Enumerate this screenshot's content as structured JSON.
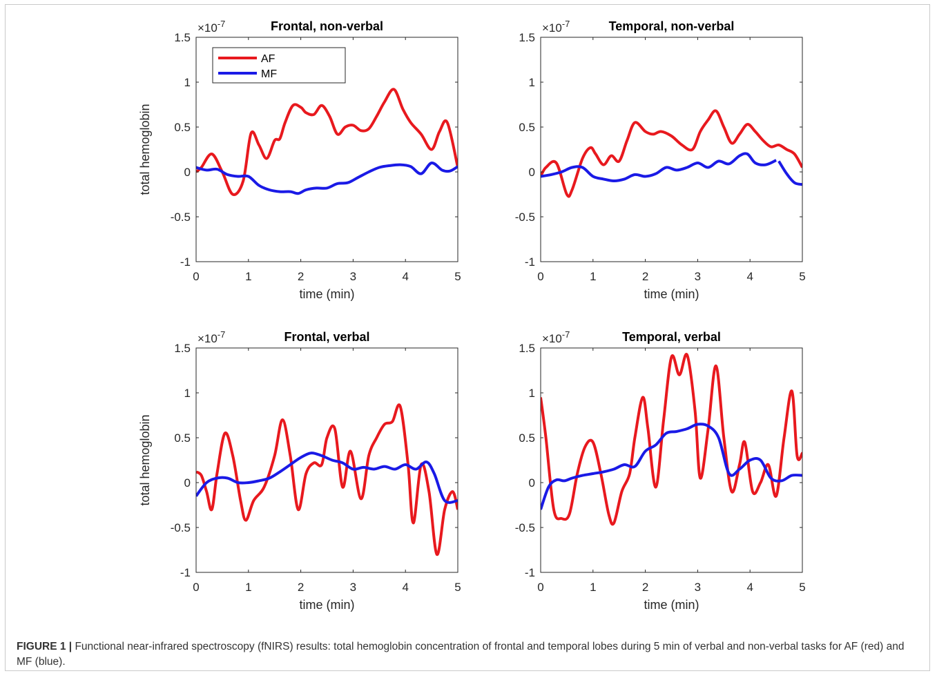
{
  "caption": {
    "label": "FIGURE 1 |",
    "text": " Functional near-infrared spectroscopy (fNIRS) results: total hemoglobin concentration of frontal and temporal lobes during 5 min of verbal and non-verbal tasks for AF (red) and MF (blue)."
  },
  "colors": {
    "AF": "#e8191e",
    "MF": "#1a1ae6"
  },
  "chart_data": [
    {
      "type": "line",
      "title": "Frontal, non-verbal",
      "xlabel": "time (min)",
      "ylabel": "total hemoglobin",
      "exponent_base": "×10",
      "exponent": "-7",
      "xlim": [
        0,
        5
      ],
      "ylim": [
        -1,
        1.5
      ],
      "xticks": [
        0,
        1,
        2,
        3,
        4,
        5
      ],
      "yticks": [
        -1,
        -0.5,
        0,
        0.5,
        1,
        1.5
      ],
      "legend": {
        "position": "top-left",
        "entries": [
          "AF",
          "MF"
        ]
      },
      "series": [
        {
          "name": "AF",
          "x": [
            0,
            0.1,
            0.3,
            0.5,
            0.7,
            0.9,
            1.05,
            1.2,
            1.35,
            1.5,
            1.6,
            1.7,
            1.85,
            2.0,
            2.1,
            2.25,
            2.4,
            2.55,
            2.7,
            2.85,
            3.0,
            3.15,
            3.3,
            3.45,
            3.6,
            3.78,
            3.95,
            4.1,
            4.3,
            4.5,
            4.65,
            4.8,
            5.0
          ],
          "values": [
            0,
            0.05,
            0.2,
            0,
            -0.25,
            -0.1,
            0.43,
            0.3,
            0.15,
            0.35,
            0.37,
            0.55,
            0.74,
            0.72,
            0.66,
            0.64,
            0.74,
            0.62,
            0.42,
            0.5,
            0.52,
            0.46,
            0.48,
            0.62,
            0.78,
            0.92,
            0.7,
            0.55,
            0.42,
            0.25,
            0.45,
            0.55,
            0.05
          ]
        },
        {
          "name": "MF",
          "x": [
            0,
            0.2,
            0.4,
            0.6,
            0.8,
            1.0,
            1.2,
            1.4,
            1.6,
            1.8,
            1.95,
            2.1,
            2.3,
            2.5,
            2.7,
            2.9,
            3.1,
            3.3,
            3.5,
            3.7,
            3.9,
            4.1,
            4.3,
            4.5,
            4.7,
            4.85,
            5.0
          ],
          "values": [
            0.05,
            0.02,
            0.03,
            -0.03,
            -0.05,
            -0.05,
            -0.15,
            -0.2,
            -0.22,
            -0.22,
            -0.24,
            -0.2,
            -0.18,
            -0.18,
            -0.13,
            -0.12,
            -0.06,
            0.0,
            0.05,
            0.07,
            0.08,
            0.06,
            -0.02,
            0.1,
            0.02,
            0.01,
            0.06
          ]
        }
      ]
    },
    {
      "type": "line",
      "title": "Temporal, non-verbal",
      "xlabel": "time (min)",
      "ylabel": "",
      "exponent_base": "×10",
      "exponent": "-7",
      "xlim": [
        0,
        5
      ],
      "ylim": [
        -1,
        1.5
      ],
      "xticks": [
        0,
        1,
        2,
        3,
        4,
        5
      ],
      "yticks": [
        -1,
        -0.5,
        0,
        0.5,
        1,
        1.5
      ],
      "series": [
        {
          "name": "AF",
          "x": [
            0,
            0.1,
            0.3,
            0.5,
            0.6,
            0.8,
            0.95,
            1.05,
            1.2,
            1.35,
            1.5,
            1.65,
            1.8,
            2.0,
            2.15,
            2.3,
            2.5,
            2.7,
            2.9,
            3.05,
            3.2,
            3.35,
            3.5,
            3.65,
            3.8,
            3.95,
            4.1,
            4.25,
            4.4,
            4.55,
            4.7,
            4.85,
            5.0
          ],
          "values": [
            -0.05,
            0.05,
            0.1,
            -0.25,
            -0.2,
            0.15,
            0.27,
            0.2,
            0.08,
            0.18,
            0.12,
            0.35,
            0.55,
            0.45,
            0.42,
            0.45,
            0.4,
            0.3,
            0.25,
            0.45,
            0.58,
            0.68,
            0.5,
            0.32,
            0.42,
            0.53,
            0.45,
            0.35,
            0.28,
            0.3,
            0.25,
            0.2,
            0.05
          ]
        },
        {
          "name": "MF",
          "x": [
            0,
            0.2,
            0.4,
            0.6,
            0.8,
            1.0,
            1.2,
            1.4,
            1.6,
            1.8,
            2.0,
            2.2,
            2.4,
            2.6,
            2.8,
            3.0,
            3.2,
            3.4,
            3.6,
            3.8,
            3.95,
            4.1,
            4.3,
            4.5
          ],
          "values": [
            -0.05,
            -0.03,
            0.0,
            0.05,
            0.05,
            -0.05,
            -0.08,
            -0.1,
            -0.08,
            -0.03,
            -0.05,
            -0.02,
            0.05,
            0.02,
            0.05,
            0.1,
            0.05,
            0.12,
            0.09,
            0.18,
            0.2,
            0.1,
            0.08,
            0.13
          ]
        },
        {
          "name": "MF",
          "x": [
            4.55,
            4.7,
            4.85,
            5.0
          ],
          "values": [
            0.12,
            -0.02,
            -0.12,
            -0.14
          ]
        }
      ]
    },
    {
      "type": "line",
      "title": "Frontal, verbal",
      "xlabel": "time (min)",
      "ylabel": "total hemoglobin",
      "exponent_base": "×10",
      "exponent": "-7",
      "xlim": [
        0,
        5
      ],
      "ylim": [
        -1,
        1.5
      ],
      "xticks": [
        0,
        1,
        2,
        3,
        4,
        5
      ],
      "yticks": [
        -1,
        -0.5,
        0,
        0.5,
        1,
        1.5
      ],
      "series": [
        {
          "name": "AF",
          "x": [
            0,
            0.1,
            0.2,
            0.3,
            0.4,
            0.55,
            0.7,
            0.85,
            0.95,
            1.1,
            1.3,
            1.5,
            1.65,
            1.8,
            1.95,
            2.1,
            2.25,
            2.4,
            2.5,
            2.65,
            2.8,
            2.95,
            3.15,
            3.3,
            3.45,
            3.6,
            3.75,
            3.9,
            4.05,
            4.15,
            4.3,
            4.45,
            4.6,
            4.75,
            4.9,
            5.0
          ],
          "values": [
            0.12,
            0.08,
            -0.1,
            -0.3,
            0.1,
            0.55,
            0.3,
            -0.2,
            -0.42,
            -0.2,
            -0.05,
            0.3,
            0.7,
            0.3,
            -0.3,
            0.1,
            0.22,
            0.2,
            0.5,
            0.6,
            -0.05,
            0.35,
            -0.18,
            0.3,
            0.5,
            0.65,
            0.68,
            0.85,
            0.2,
            -0.45,
            0.2,
            -0.1,
            -0.8,
            -0.3,
            -0.1,
            -0.3
          ]
        },
        {
          "name": "MF",
          "x": [
            0,
            0.2,
            0.4,
            0.6,
            0.8,
            1.0,
            1.2,
            1.4,
            1.6,
            1.8,
            2.0,
            2.2,
            2.4,
            2.6,
            2.8,
            3.0,
            3.2,
            3.4,
            3.6,
            3.8,
            4.0,
            4.2,
            4.4,
            4.55,
            4.75,
            5.0
          ],
          "values": [
            -0.15,
            0.0,
            0.05,
            0.05,
            0.0,
            0.0,
            0.02,
            0.05,
            0.12,
            0.2,
            0.28,
            0.33,
            0.3,
            0.25,
            0.22,
            0.15,
            0.17,
            0.15,
            0.18,
            0.15,
            0.2,
            0.15,
            0.23,
            0.1,
            -0.2,
            -0.2
          ]
        }
      ]
    },
    {
      "type": "line",
      "title": "Temporal, verbal",
      "xlabel": "time (min)",
      "ylabel": "",
      "exponent_base": "×10",
      "exponent": "-7",
      "xlim": [
        0,
        5
      ],
      "ylim": [
        -1,
        1.5
      ],
      "xticks": [
        0,
        1,
        2,
        3,
        4,
        5
      ],
      "yticks": [
        -1,
        -0.5,
        0,
        0.5,
        1,
        1.5
      ],
      "series": [
        {
          "name": "AF",
          "x": [
            0,
            0.1,
            0.25,
            0.4,
            0.55,
            0.7,
            0.85,
            1.0,
            1.15,
            1.3,
            1.4,
            1.55,
            1.7,
            1.8,
            1.95,
            2.05,
            2.2,
            2.35,
            2.5,
            2.65,
            2.8,
            2.95,
            3.05,
            3.2,
            3.35,
            3.5,
            3.65,
            3.8,
            3.9,
            4.05,
            4.2,
            4.35,
            4.5,
            4.65,
            4.8,
            4.9,
            5.0
          ],
          "values": [
            0.95,
            0.5,
            -0.3,
            -0.4,
            -0.35,
            0.1,
            0.4,
            0.45,
            0.1,
            -0.35,
            -0.45,
            -0.1,
            0.1,
            0.5,
            0.95,
            0.6,
            -0.05,
            0.7,
            1.4,
            1.2,
            1.42,
            0.8,
            0.05,
            0.6,
            1.3,
            0.5,
            -0.1,
            0.2,
            0.45,
            -0.1,
            0.0,
            0.2,
            -0.15,
            0.5,
            1.02,
            0.3,
            0.33
          ]
        },
        {
          "name": "MF",
          "x": [
            0,
            0.15,
            0.3,
            0.45,
            0.6,
            0.8,
            1.0,
            1.2,
            1.4,
            1.6,
            1.8,
            2.0,
            2.2,
            2.4,
            2.6,
            2.8,
            3.0,
            3.2,
            3.4,
            3.6,
            3.8,
            4.0,
            4.2,
            4.4,
            4.6,
            4.8,
            5.0
          ],
          "values": [
            -0.3,
            -0.05,
            0.03,
            0.02,
            0.05,
            0.08,
            0.1,
            0.12,
            0.15,
            0.2,
            0.18,
            0.35,
            0.42,
            0.55,
            0.57,
            0.6,
            0.65,
            0.63,
            0.5,
            0.1,
            0.15,
            0.25,
            0.25,
            0.05,
            0.02,
            0.08,
            0.08
          ]
        }
      ]
    }
  ]
}
